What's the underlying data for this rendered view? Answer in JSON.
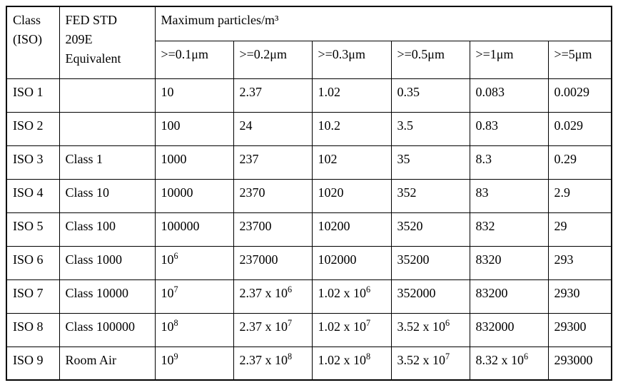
{
  "page": {
    "background_color": "#ffffff",
    "border_color": "#000000",
    "text_color": "#000000"
  },
  "table": {
    "header": {
      "col_class": "Class\n(ISO)",
      "col_fed": "FED STD\n209E\nEquivalent",
      "col_max": "Maximum particles/m³",
      "subheaders": [
        ">=0.1μm",
        ">=0.2μm",
        ">=0.3μm",
        ">=0.5μm",
        ">=1μm",
        ">=5μm"
      ]
    },
    "rows": [
      {
        "cells": [
          "ISO 1",
          "",
          "10",
          "2.37",
          "1.02",
          "0.35",
          "0.083",
          "0.0029"
        ]
      },
      {
        "cells": [
          "ISO 2",
          "",
          "100",
          "24",
          "10.2",
          "3.5",
          "0.83",
          "0.029"
        ]
      },
      {
        "cells": [
          "ISO 3",
          "Class 1",
          "1000",
          "237",
          "102",
          "35",
          "8.3",
          "0.29"
        ]
      },
      {
        "cells": [
          "ISO 4",
          "Class 10",
          "10000",
          "2370",
          "1020",
          "352",
          "83",
          "2.9"
        ]
      },
      {
        "cells": [
          "ISO 5",
          "Class 100",
          "100000",
          "23700",
          "10200",
          "3520",
          "832",
          "29"
        ]
      },
      {
        "cells": [
          "ISO 6",
          "Class 1000",
          "10^6",
          "237000",
          "102000",
          "35200",
          "8320",
          "293"
        ]
      },
      {
        "cells": [
          "ISO 7",
          "Class 10000",
          "10^7",
          "2.37 x 10^6",
          "1.02 x 10^6",
          "352000",
          "83200",
          "2930"
        ]
      },
      {
        "cells": [
          "ISO 8",
          "Class 100000",
          "10^8",
          "2.37 x 10^7",
          "1.02 x 10^7",
          "3.52 x 10^6",
          "832000",
          "29300"
        ]
      },
      {
        "cells": [
          "ISO 9",
          "Room Air",
          "10^9",
          "2.37 x 10^8",
          "1.02 x 10^8",
          "3.52 x 10^7",
          "8.32 x 10^6",
          "293000"
        ]
      }
    ]
  }
}
